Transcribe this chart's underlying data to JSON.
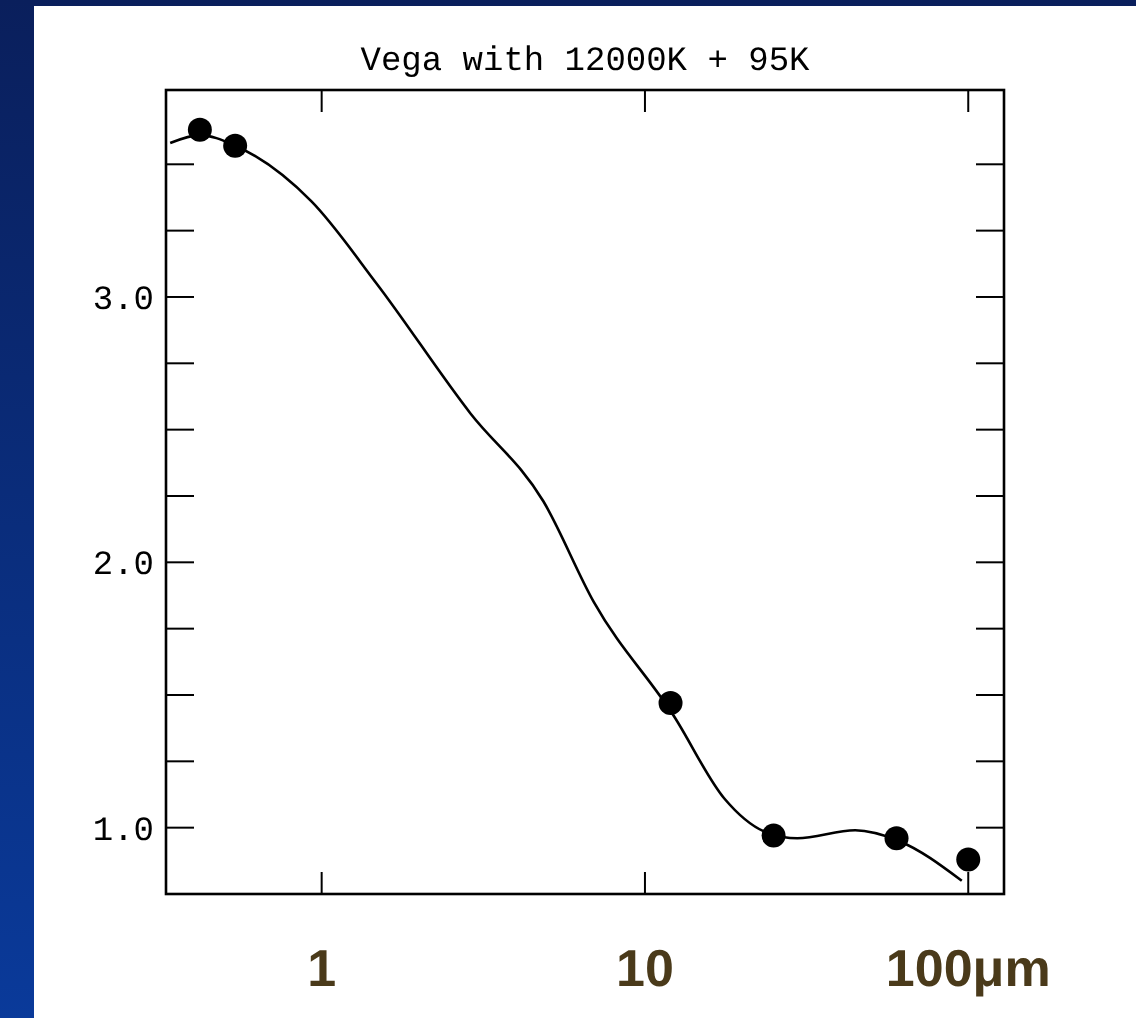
{
  "chart_data": {
    "type": "scatter",
    "title": "Vega with 12000K + 95K",
    "log": "x",
    "marker": "circle",
    "grid": false,
    "xlim": [
      0.33,
      129
    ],
    "xticks": [
      1,
      10,
      {
        "value": 100,
        "label": "100μm"
      }
    ],
    "ylim": [
      0.75,
      3.78
    ],
    "yticks": [
      {
        "value": 1,
        "label": "1.0"
      },
      {
        "value": 1.25,
        "label": null
      },
      {
        "value": 1.5,
        "label": null
      },
      {
        "value": 1.75,
        "label": null
      },
      {
        "value": 2,
        "label": "2.0"
      },
      {
        "value": 2.25,
        "label": null
      },
      {
        "value": 2.5,
        "label": null
      },
      {
        "value": 2.75,
        "label": null
      },
      {
        "value": 3,
        "label": "3.0"
      },
      {
        "value": 3.25,
        "label": null
      },
      {
        "value": 3.5,
        "label": null
      }
    ],
    "series": [
      {
        "color": "#000000",
        "x": [
          0.42,
          0.54,
          12,
          25,
          60,
          100
        ],
        "values": [
          3.63,
          3.57,
          1.47,
          0.97,
          0.96,
          0.88
        ]
      },
      {
        "type": "line",
        "color": "#000000",
        "marker": "none",
        "line_style": "solid",
        "x": [
          0.34,
          0.42,
          0.54,
          0.93,
          1.48,
          2.89,
          4.85,
          6.95,
          12.3,
          17.6,
          24,
          29.6,
          44.7,
          61,
          95.5
        ],
        "values": [
          3.58,
          3.61,
          3.57,
          3.36,
          3.05,
          2.56,
          2.23,
          1.85,
          1.42,
          1.11,
          0.98,
          0.96,
          0.99,
          0.95,
          0.8
        ]
      }
    ]
  }
}
